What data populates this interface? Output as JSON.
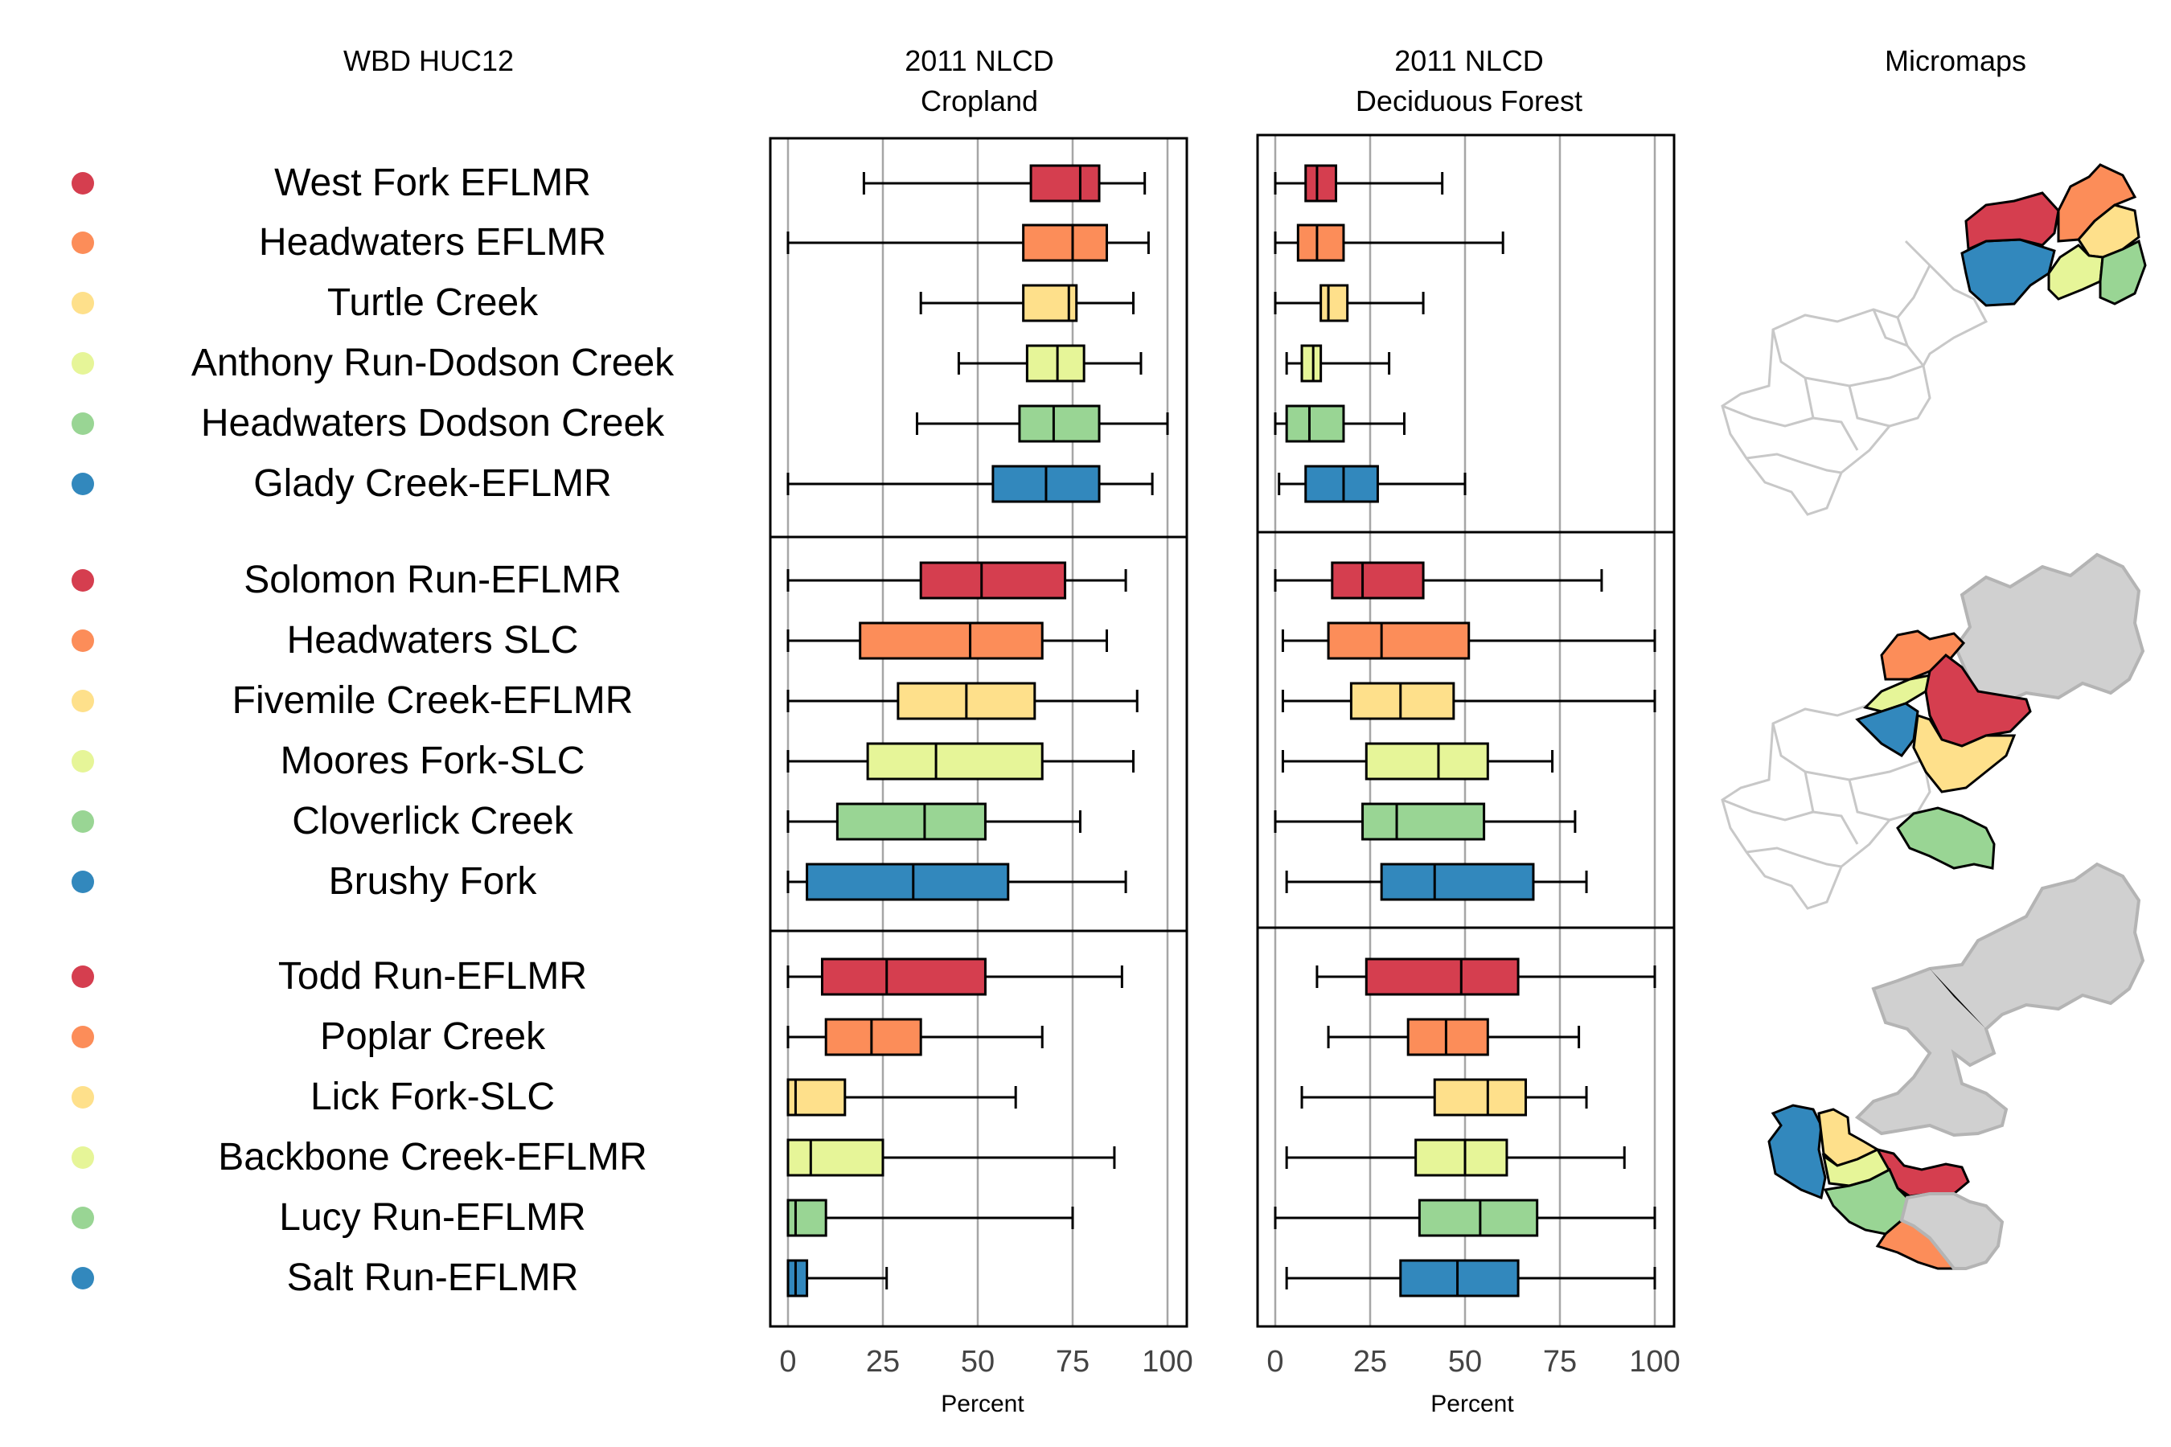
{
  "headers": {
    "huc": "WBD HUC12",
    "cropland": [
      "2011 NLCD",
      "Cropland"
    ],
    "forest": [
      "2011 NLCD",
      "Deciduous Forest"
    ],
    "micromaps": "Micromaps"
  },
  "axis": {
    "ticks": [
      "0",
      "25",
      "50",
      "75",
      "100"
    ],
    "xlabel": "Percent"
  },
  "colors": [
    "#D53E4F",
    "#FC8D59",
    "#FEE08B",
    "#E6F598",
    "#99D594",
    "#3288BD"
  ],
  "color_names": [
    "red",
    "orange",
    "yellow",
    "light-green",
    "green",
    "blue"
  ],
  "groups": [
    {
      "names": [
        "West Fork EFLMR",
        "Headwaters EFLMR",
        "Turtle Creek",
        "Anthony Run-Dodson Creek",
        "Headwaters Dodson Creek",
        "Glady Creek-EFLMR"
      ]
    },
    {
      "names": [
        "Solomon Run-EFLMR",
        "Headwaters SLC",
        "Fivemile Creek-EFLMR",
        "Moores Fork-SLC",
        "Cloverlick Creek",
        "Brushy Fork"
      ]
    },
    {
      "names": [
        "Todd Run-EFLMR",
        "Poplar Creek",
        "Lick Fork-SLC",
        "Backbone Creek-EFLMR",
        "Lucy Run-EFLMR",
        "Salt Run-EFLMR"
      ]
    }
  ],
  "chart_data": [
    {
      "type": "boxplot",
      "title": "2011 NLCD Cropland",
      "xlabel": "Percent",
      "xlim": [
        0,
        100
      ],
      "grid": true,
      "boxes": [
        {
          "name": "West Fork EFLMR",
          "min": 20,
          "q1": 64,
          "median": 77,
          "q3": 82,
          "max": 94
        },
        {
          "name": "Headwaters EFLMR",
          "min": 0,
          "q1": 62,
          "median": 75,
          "q3": 84,
          "max": 95
        },
        {
          "name": "Turtle Creek",
          "min": 35,
          "q1": 62,
          "median": 74,
          "q3": 76,
          "max": 91
        },
        {
          "name": "Anthony Run-Dodson Creek",
          "min": 45,
          "q1": 63,
          "median": 71,
          "q3": 78,
          "max": 93
        },
        {
          "name": "Headwaters Dodson Creek",
          "min": 34,
          "q1": 61,
          "median": 70,
          "q3": 82,
          "max": 100
        },
        {
          "name": "Glady Creek-EFLMR",
          "min": 0,
          "q1": 54,
          "median": 68,
          "q3": 82,
          "max": 96
        },
        {
          "name": "Solomon Run-EFLMR",
          "min": 0,
          "q1": 35,
          "median": 51,
          "q3": 73,
          "max": 89
        },
        {
          "name": "Headwaters SLC",
          "min": 0,
          "q1": 19,
          "median": 48,
          "q3": 67,
          "max": 84
        },
        {
          "name": "Fivemile Creek-EFLMR",
          "min": 0,
          "q1": 29,
          "median": 47,
          "q3": 65,
          "max": 92
        },
        {
          "name": "Moores Fork-SLC",
          "min": 0,
          "q1": 21,
          "median": 39,
          "q3": 67,
          "max": 91
        },
        {
          "name": "Cloverlick Creek",
          "min": 0,
          "q1": 13,
          "median": 36,
          "q3": 52,
          "max": 77
        },
        {
          "name": "Brushy Fork",
          "min": 0,
          "q1": 5,
          "median": 33,
          "q3": 58,
          "max": 89
        },
        {
          "name": "Todd Run-EFLMR",
          "min": 0,
          "q1": 9,
          "median": 26,
          "q3": 52,
          "max": 88
        },
        {
          "name": "Poplar Creek",
          "min": 0,
          "q1": 10,
          "median": 22,
          "q3": 35,
          "max": 67
        },
        {
          "name": "Lick Fork-SLC",
          "min": 0,
          "q1": 0,
          "median": 2,
          "q3": 15,
          "max": 60
        },
        {
          "name": "Backbone Creek-EFLMR",
          "min": 0,
          "q1": 0,
          "median": 6,
          "q3": 25,
          "max": 86
        },
        {
          "name": "Lucy Run-EFLMR",
          "min": 0,
          "q1": 0,
          "median": 2,
          "q3": 10,
          "max": 75
        },
        {
          "name": "Salt Run-EFLMR",
          "min": 0,
          "q1": 0,
          "median": 2,
          "q3": 5,
          "max": 26
        }
      ]
    },
    {
      "type": "boxplot",
      "title": "2011 NLCD Deciduous Forest",
      "xlabel": "Percent",
      "xlim": [
        0,
        100
      ],
      "grid": true,
      "boxes": [
        {
          "name": "West Fork EFLMR",
          "min": 0,
          "q1": 8,
          "median": 11,
          "q3": 16,
          "max": 44
        },
        {
          "name": "Headwaters EFLMR",
          "min": 0,
          "q1": 6,
          "median": 11,
          "q3": 18,
          "max": 60
        },
        {
          "name": "Turtle Creek",
          "min": 0,
          "q1": 12,
          "median": 14,
          "q3": 19,
          "max": 39
        },
        {
          "name": "Anthony Run-Dodson Creek",
          "min": 3,
          "q1": 7,
          "median": 10,
          "q3": 12,
          "max": 30
        },
        {
          "name": "Headwaters Dodson Creek",
          "min": 0,
          "q1": 3,
          "median": 9,
          "q3": 18,
          "max": 34
        },
        {
          "name": "Glady Creek-EFLMR",
          "min": 1,
          "q1": 8,
          "median": 18,
          "q3": 27,
          "max": 50
        },
        {
          "name": "Solomon Run-EFLMR",
          "min": 0,
          "q1": 15,
          "median": 23,
          "q3": 39,
          "max": 86
        },
        {
          "name": "Headwaters SLC",
          "min": 2,
          "q1": 14,
          "median": 28,
          "q3": 51,
          "max": 100
        },
        {
          "name": "Fivemile Creek-EFLMR",
          "min": 2,
          "q1": 20,
          "median": 33,
          "q3": 47,
          "max": 100
        },
        {
          "name": "Moores Fork-SLC",
          "min": 2,
          "q1": 24,
          "median": 43,
          "q3": 56,
          "max": 73
        },
        {
          "name": "Cloverlick Creek",
          "min": 0,
          "q1": 23,
          "median": 32,
          "q3": 55,
          "max": 79
        },
        {
          "name": "Brushy Fork",
          "min": 3,
          "q1": 28,
          "median": 42,
          "q3": 68,
          "max": 82
        },
        {
          "name": "Todd Run-EFLMR",
          "min": 11,
          "q1": 24,
          "median": 49,
          "q3": 64,
          "max": 100
        },
        {
          "name": "Poplar Creek",
          "min": 14,
          "q1": 35,
          "median": 45,
          "q3": 56,
          "max": 80
        },
        {
          "name": "Lick Fork-SLC",
          "min": 7,
          "q1": 42,
          "median": 56,
          "q3": 66,
          "max": 82
        },
        {
          "name": "Backbone Creek-EFLMR",
          "min": 3,
          "q1": 37,
          "median": 50,
          "q3": 61,
          "max": 92
        },
        {
          "name": "Lucy Run-EFLMR",
          "min": 0,
          "q1": 38,
          "median": 54,
          "q3": 69,
          "max": 100
        },
        {
          "name": "Salt Run-EFLMR",
          "min": 3,
          "q1": 33,
          "median": 48,
          "q3": 64,
          "max": 100
        }
      ]
    }
  ]
}
